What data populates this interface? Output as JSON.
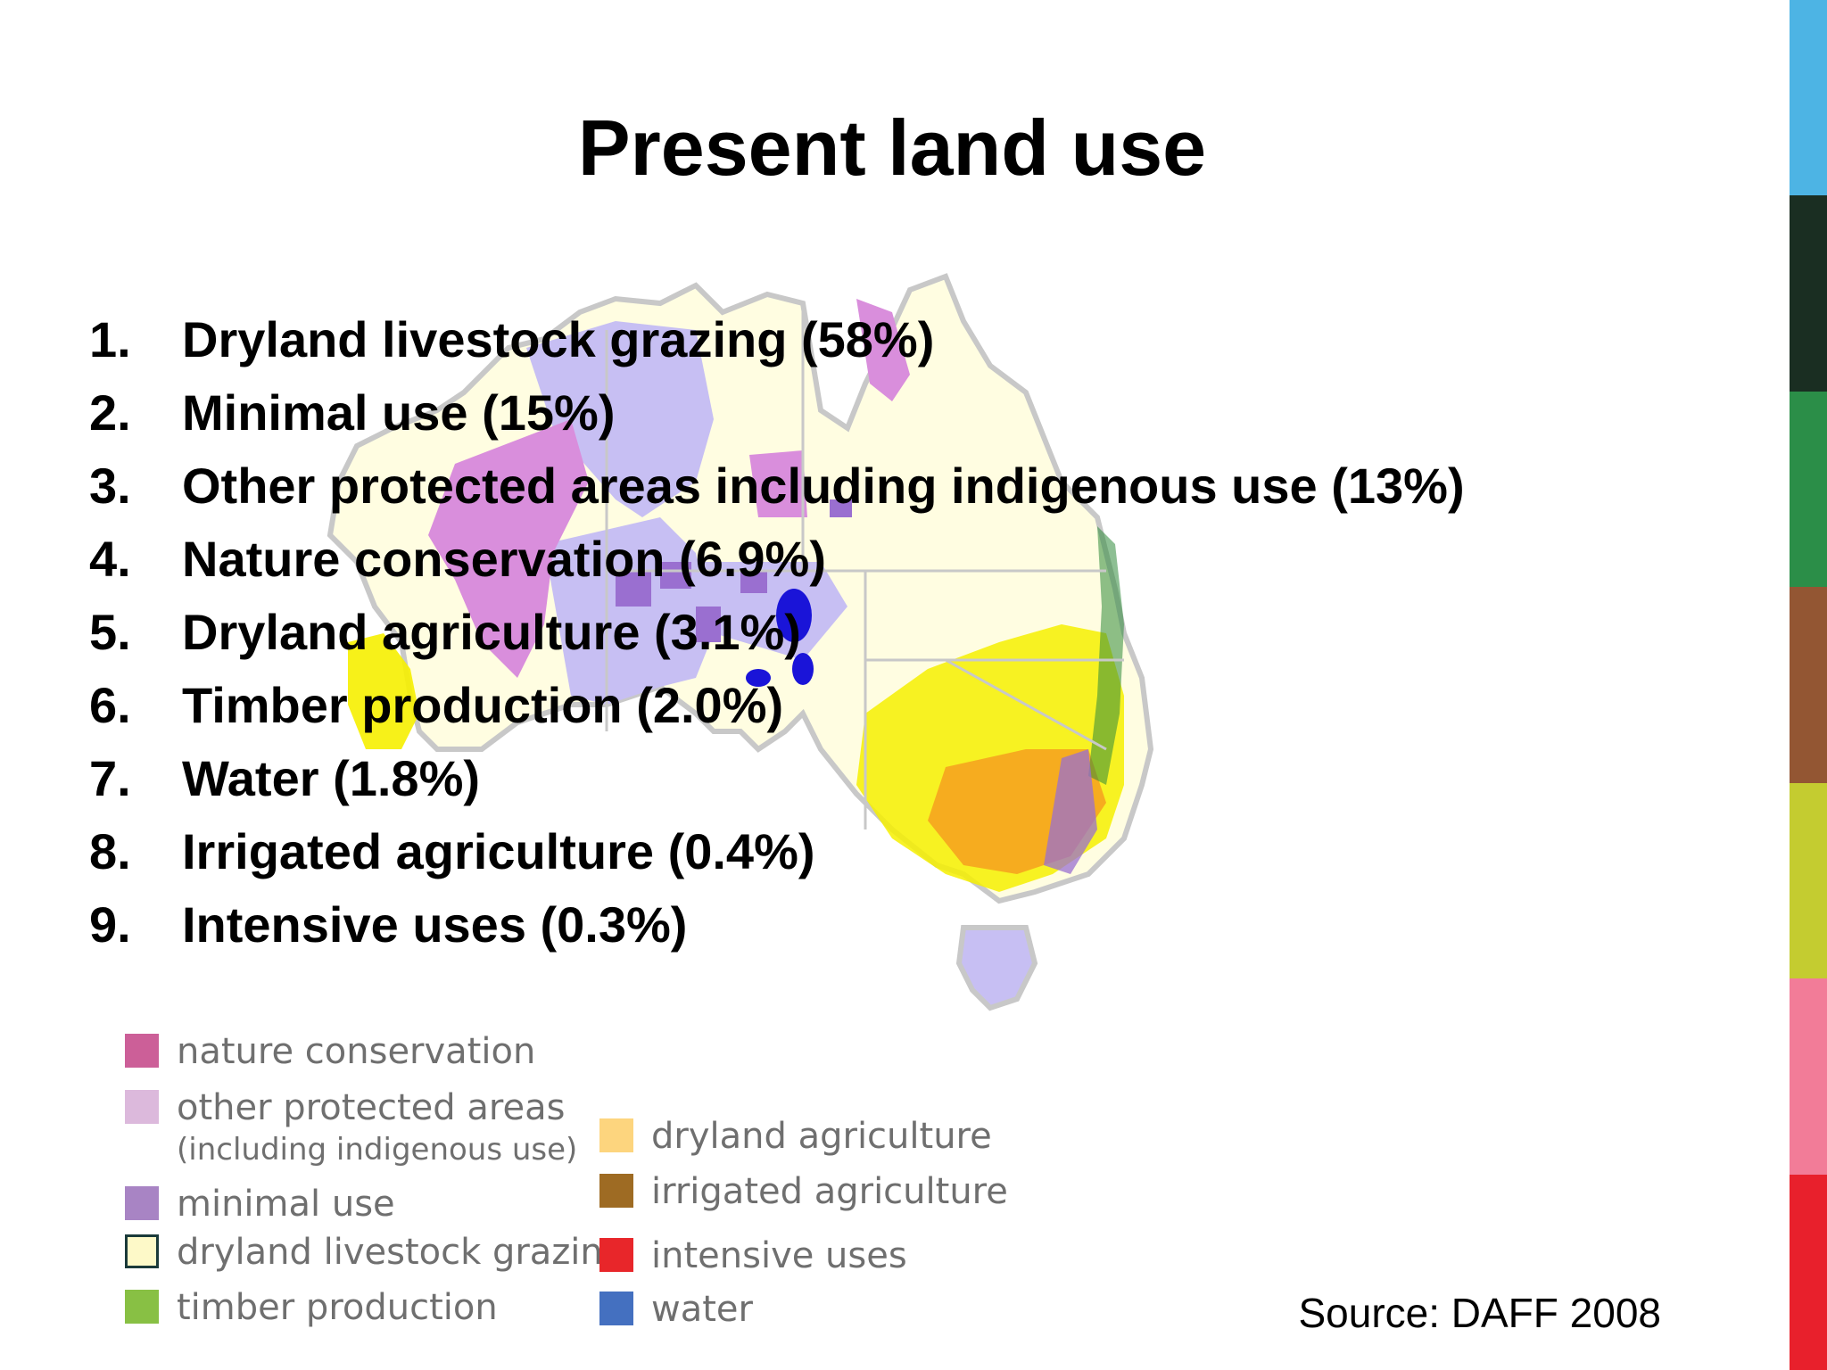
{
  "slide": {
    "title": "Present land use",
    "source": "Source: DAFF 2008"
  },
  "land_uses": [
    {
      "num": "1.",
      "label": "Dryland livestock grazing (58%)"
    },
    {
      "num": "2.",
      "label": "Minimal use (15%)"
    },
    {
      "num": "3.",
      "label": "Other protected areas including indigenous use  (13%)"
    },
    {
      "num": "4.",
      "label": "Nature conservation (6.9%)"
    },
    {
      "num": "5.",
      "label": "Dryland agriculture (3.1%)"
    },
    {
      "num": "6.",
      "label": "Timber production (2.0%)"
    },
    {
      "num": "7.",
      "label": "Water (1.8%)"
    },
    {
      "num": "8.",
      "label": "Irrigated agriculture (0.4%)"
    },
    {
      "num": "9.",
      "label": "Intensive uses (0.3%)"
    }
  ],
  "legend": {
    "nature_conservation": {
      "label": "nature conservation",
      "color": "#cc5f98"
    },
    "other_protected": {
      "label": "other protected areas",
      "sub": "(including indigenous use)",
      "color": "#dcb9dc"
    },
    "minimal_use": {
      "label": "minimal use",
      "color": "#a884c4"
    },
    "dryland_grazing": {
      "label": "dryland livestock grazing",
      "color": "#fdf9c8"
    },
    "timber_production": {
      "label": "timber production",
      "color": "#88c044"
    },
    "dryland_agriculture": {
      "label": "dryland agriculture",
      "color": "#fdd57e"
    },
    "irrigated_agriculture": {
      "label": "irrigated agriculture",
      "color": "#9e6b23"
    },
    "intensive_uses": {
      "label": "intensive uses",
      "color": "#e8262a"
    },
    "water": {
      "label": "water",
      "color": "#4470c0"
    }
  },
  "map_colors": {
    "grazing": "#fffde1",
    "minimal": "#c7bff3",
    "nature": "#d98edc",
    "minimal_dark": "#9a6fd0",
    "water": "#1a14d8",
    "agri": "#f6f000",
    "orange": "#f59a1f",
    "green": "#2f8a3a",
    "border": "#c8c8c8"
  },
  "color_bar": [
    "#4db4e4",
    "#1a2e22",
    "#2b8e48",
    "#935633",
    "#c4cc30",
    "#f27c98",
    "#e8202c"
  ]
}
